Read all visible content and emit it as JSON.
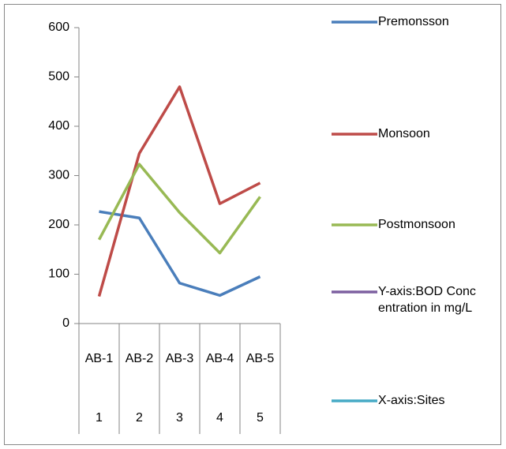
{
  "chart_data": {
    "type": "line",
    "categories": [
      "AB-1",
      "AB-2",
      "AB-3",
      "AB-4",
      "AB-5"
    ],
    "category_groups": [
      "1",
      "2",
      "3",
      "4",
      "5"
    ],
    "series": [
      {
        "name": "Premonsson",
        "color": "#4a7ebb",
        "values": [
          227,
          214,
          82,
          57,
          95
        ]
      },
      {
        "name": "Monsoon",
        "color": "#be4b48",
        "values": [
          55,
          345,
          480,
          243,
          285
        ]
      },
      {
        "name": "Postmonsoon",
        "color": "#98b954",
        "values": [
          170,
          323,
          225,
          143,
          257
        ]
      },
      {
        "name": "Y-axis:BOD Concentration in mg/L",
        "color": "#7d60a0",
        "values": [
          null,
          null,
          null,
          null,
          null
        ]
      },
      {
        "name": "X-axis:Sites",
        "color": "#46aac5",
        "values": [
          null,
          null,
          null,
          null,
          null
        ]
      }
    ],
    "ylim": [
      0,
      600
    ],
    "yticks": [
      0,
      100,
      200,
      300,
      400,
      500,
      600
    ],
    "legend": "right"
  }
}
